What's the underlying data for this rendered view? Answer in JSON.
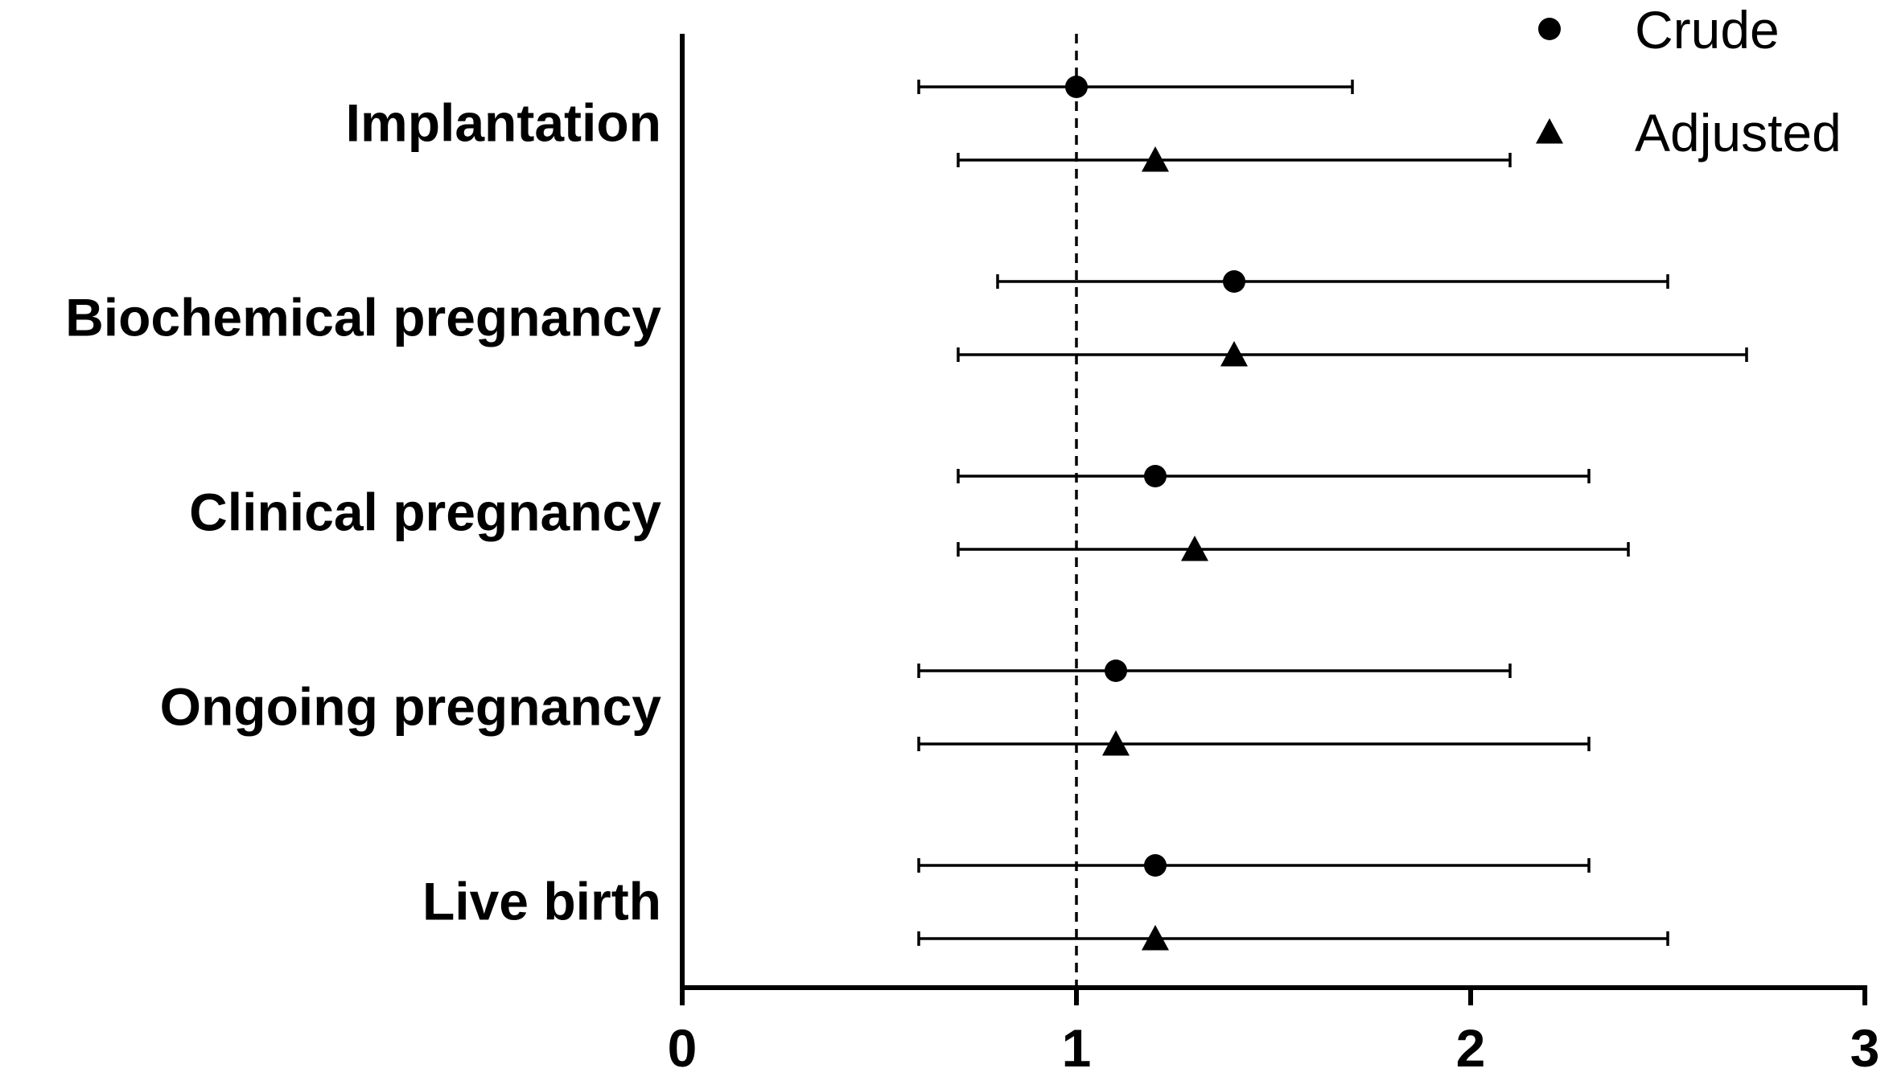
{
  "chart_data": {
    "type": "forest",
    "categories": [
      "Implantation",
      "Biochemical pregnancy",
      "Clinical pregnancy",
      "Ongoing pregnancy",
      "Live birth"
    ],
    "series": [
      {
        "name": "Crude",
        "marker": "circle",
        "points": [
          {
            "estimate": 1.0,
            "lower": 0.6,
            "upper": 1.7
          },
          {
            "estimate": 1.4,
            "lower": 0.8,
            "upper": 2.5
          },
          {
            "estimate": 1.2,
            "lower": 0.7,
            "upper": 2.3
          },
          {
            "estimate": 1.1,
            "lower": 0.6,
            "upper": 2.1
          },
          {
            "estimate": 1.2,
            "lower": 0.6,
            "upper": 2.3
          }
        ]
      },
      {
        "name": "Adjusted",
        "marker": "triangle",
        "points": [
          {
            "estimate": 1.2,
            "lower": 0.7,
            "upper": 2.1
          },
          {
            "estimate": 1.4,
            "lower": 0.7,
            "upper": 2.7
          },
          {
            "estimate": 1.3,
            "lower": 0.7,
            "upper": 2.4
          },
          {
            "estimate": 1.1,
            "lower": 0.6,
            "upper": 2.3
          },
          {
            "estimate": 1.2,
            "lower": 0.6,
            "upper": 2.5
          }
        ]
      }
    ],
    "xlim": [
      0,
      3
    ],
    "xticks": [
      "0",
      "1",
      "2",
      "3"
    ],
    "reference_line": 1,
    "legend_position": "top-right",
    "color": "#000000"
  }
}
